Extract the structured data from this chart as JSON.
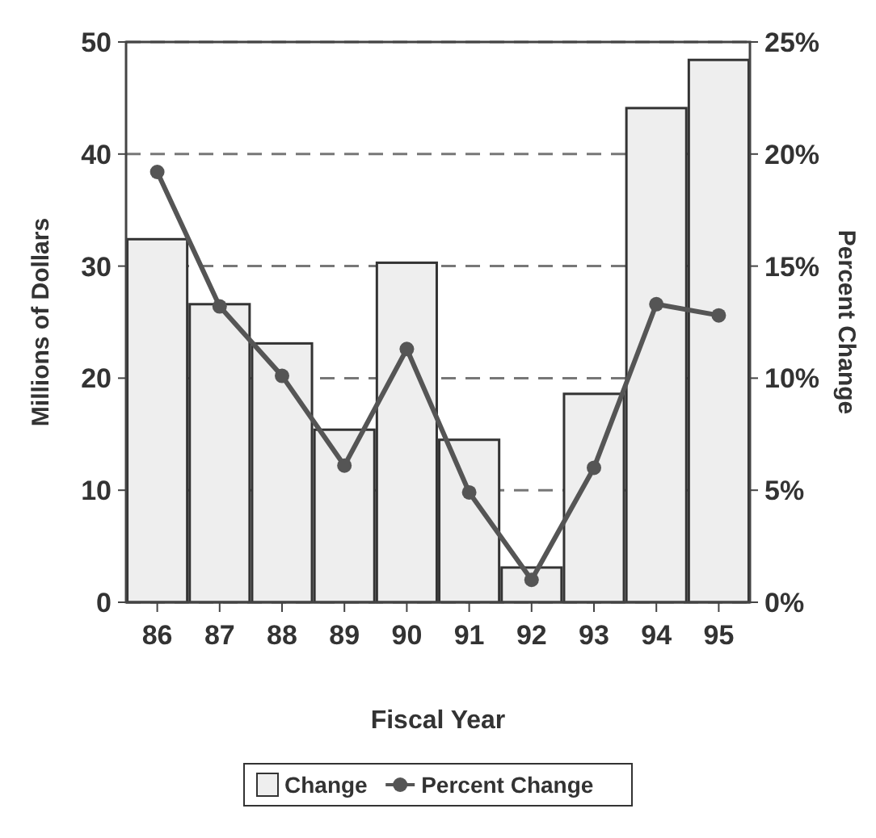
{
  "chart_data": {
    "type": "bar",
    "xlabel": "Fiscal Year",
    "ylabel": "Millions of Dollars",
    "y2label": "Percent Change",
    "categories": [
      "86",
      "87",
      "88",
      "89",
      "90",
      "91",
      "92",
      "93",
      "94",
      "95"
    ],
    "series": [
      {
        "name": "Change",
        "color": "#eeeeee",
        "values": [
          32.4,
          26.6,
          23.1,
          15.4,
          30.3,
          14.5,
          3.1,
          18.6,
          44.1,
          48.4
        ]
      },
      {
        "name": "Percent Change",
        "type": "line",
        "axis": "y2",
        "color": "#555555",
        "values": [
          19.2,
          13.2,
          10.1,
          6.1,
          11.3,
          4.9,
          1.0,
          6.0,
          13.3,
          12.8
        ]
      }
    ],
    "ylim": [
      0,
      50
    ],
    "yticks": [
      0,
      10,
      20,
      30,
      40,
      50
    ],
    "y2lim": [
      0,
      25
    ],
    "y2ticks": [
      {
        "value": 0,
        "label": "0%"
      },
      {
        "value": 5,
        "label": "5%"
      },
      {
        "value": 10,
        "label": "10%"
      },
      {
        "value": 15,
        "label": "15%"
      },
      {
        "value": 20,
        "label": "20%"
      },
      {
        "value": 25,
        "label": "25%"
      }
    ],
    "grid": "y",
    "legend": "bottom",
    "marker": "circle",
    "line_style": "solid"
  }
}
